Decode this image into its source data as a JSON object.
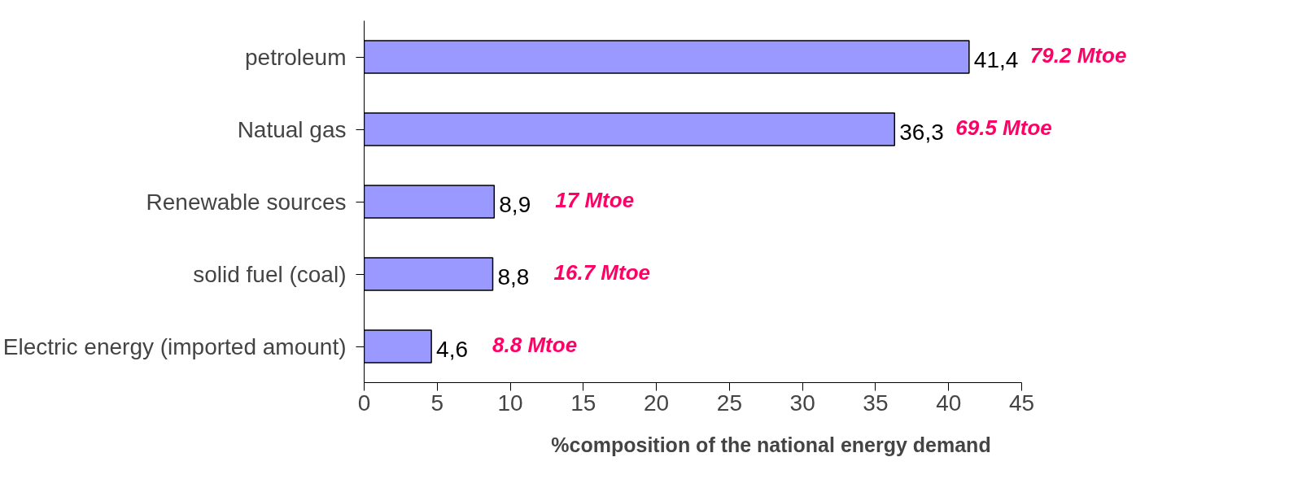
{
  "chart_data": {
    "type": "bar",
    "orientation": "horizontal",
    "xlabel": "%composition of the national energy demand",
    "categories": [
      "petroleum",
      "Natual gas",
      "Renewable sources",
      "solid fuel (coal)",
      "Electric energy (imported amount)"
    ],
    "values": [
      41.4,
      36.3,
      8.9,
      8.8,
      4.6
    ],
    "color": "#9999ff",
    "value_labels": [
      "41,4",
      "36,3",
      "8,9",
      "8,8",
      "4,6"
    ],
    "xlim": [
      0,
      45
    ],
    "xticks": [
      0,
      5,
      10,
      15,
      20,
      25,
      30,
      35,
      40,
      45
    ],
    "grid": false,
    "annotations": [
      {
        "text": "79.2 Mtoe",
        "x": 41.4,
        "y": "petroleum"
      },
      {
        "text": "69.5 Mtoe",
        "x": 36.3,
        "y": "Natual gas"
      },
      {
        "text": "17 Mtoe",
        "x": 8.9,
        "y": "Renewable sources"
      },
      {
        "text": "16.7 Mtoe",
        "x": 8.8,
        "y": "solid fuel (coal)"
      },
      {
        "text": "8.8 Mtoe",
        "x": 4.6,
        "y": "Electric energy (imported amount)"
      }
    ]
  }
}
